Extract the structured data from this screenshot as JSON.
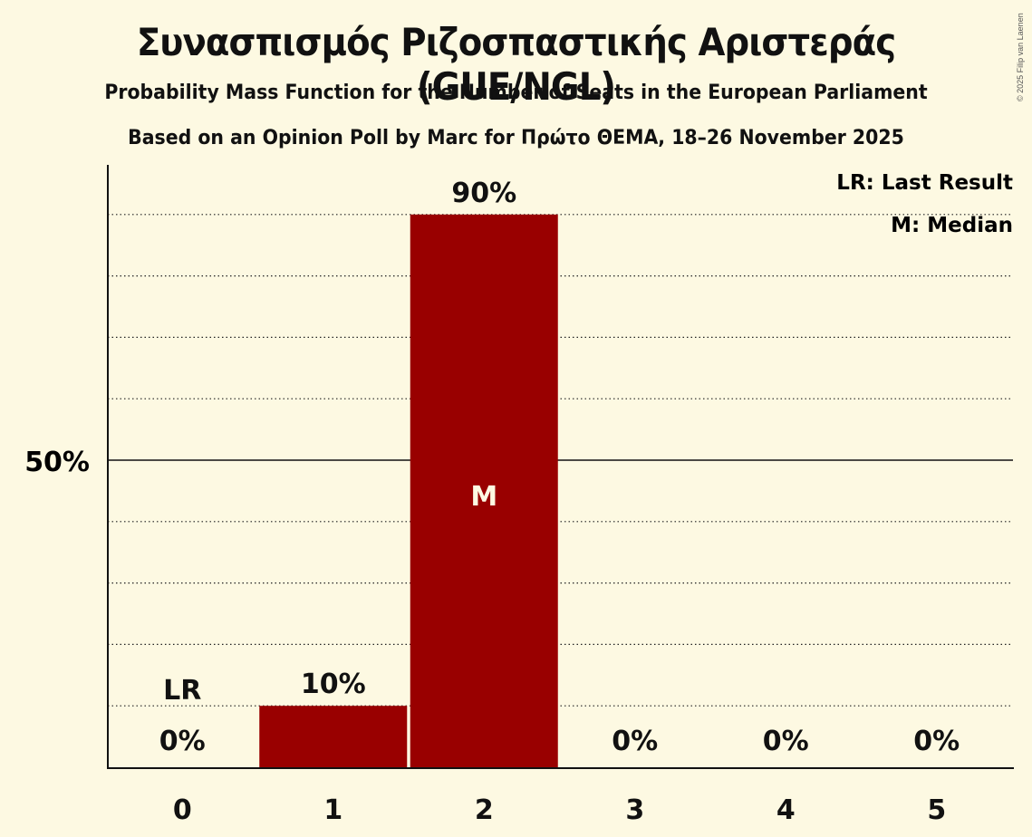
{
  "title": "Συνασπισμός Ριζοσπαστικής Αριστεράς (GUE/NGL)",
  "subtitle": "Probability Mass Function for the Number of Seats in the European Parliament",
  "source": "Based on an Opinion Poll by Marc for Πρώτο ΘΕΜΑ, 18–26 November 2025",
  "copyright": "© 2025 Filip van Laenen",
  "legend": {
    "lr": "LR: Last Result",
    "m": "M: Median"
  },
  "colors": {
    "bar": "#990000",
    "background": "#fdf9e2"
  },
  "chart_data": {
    "type": "bar",
    "title": "Συνασπισμός Ριζοσπαστικής Αριστεράς (GUE/NGL)",
    "subtitle": "Probability Mass Function for the Number of Seats in the European Parliament",
    "categories": [
      "0",
      "1",
      "2",
      "3",
      "4",
      "5"
    ],
    "values": [
      0,
      10,
      90,
      0,
      0,
      0
    ],
    "value_labels": [
      "0%",
      "10%",
      "90%",
      "0%",
      "0%",
      "0%"
    ],
    "xlabel": "",
    "ylabel": "",
    "ylim": [
      0,
      100
    ],
    "y_tick_labels": [
      "50%"
    ],
    "gridlines": "dotted every 10%, solid at 50%",
    "annotations": {
      "last_result_seat": "0",
      "median_seat": "2",
      "last_result_label": "LR",
      "median_label": "M"
    },
    "legend_position": "top-right"
  }
}
